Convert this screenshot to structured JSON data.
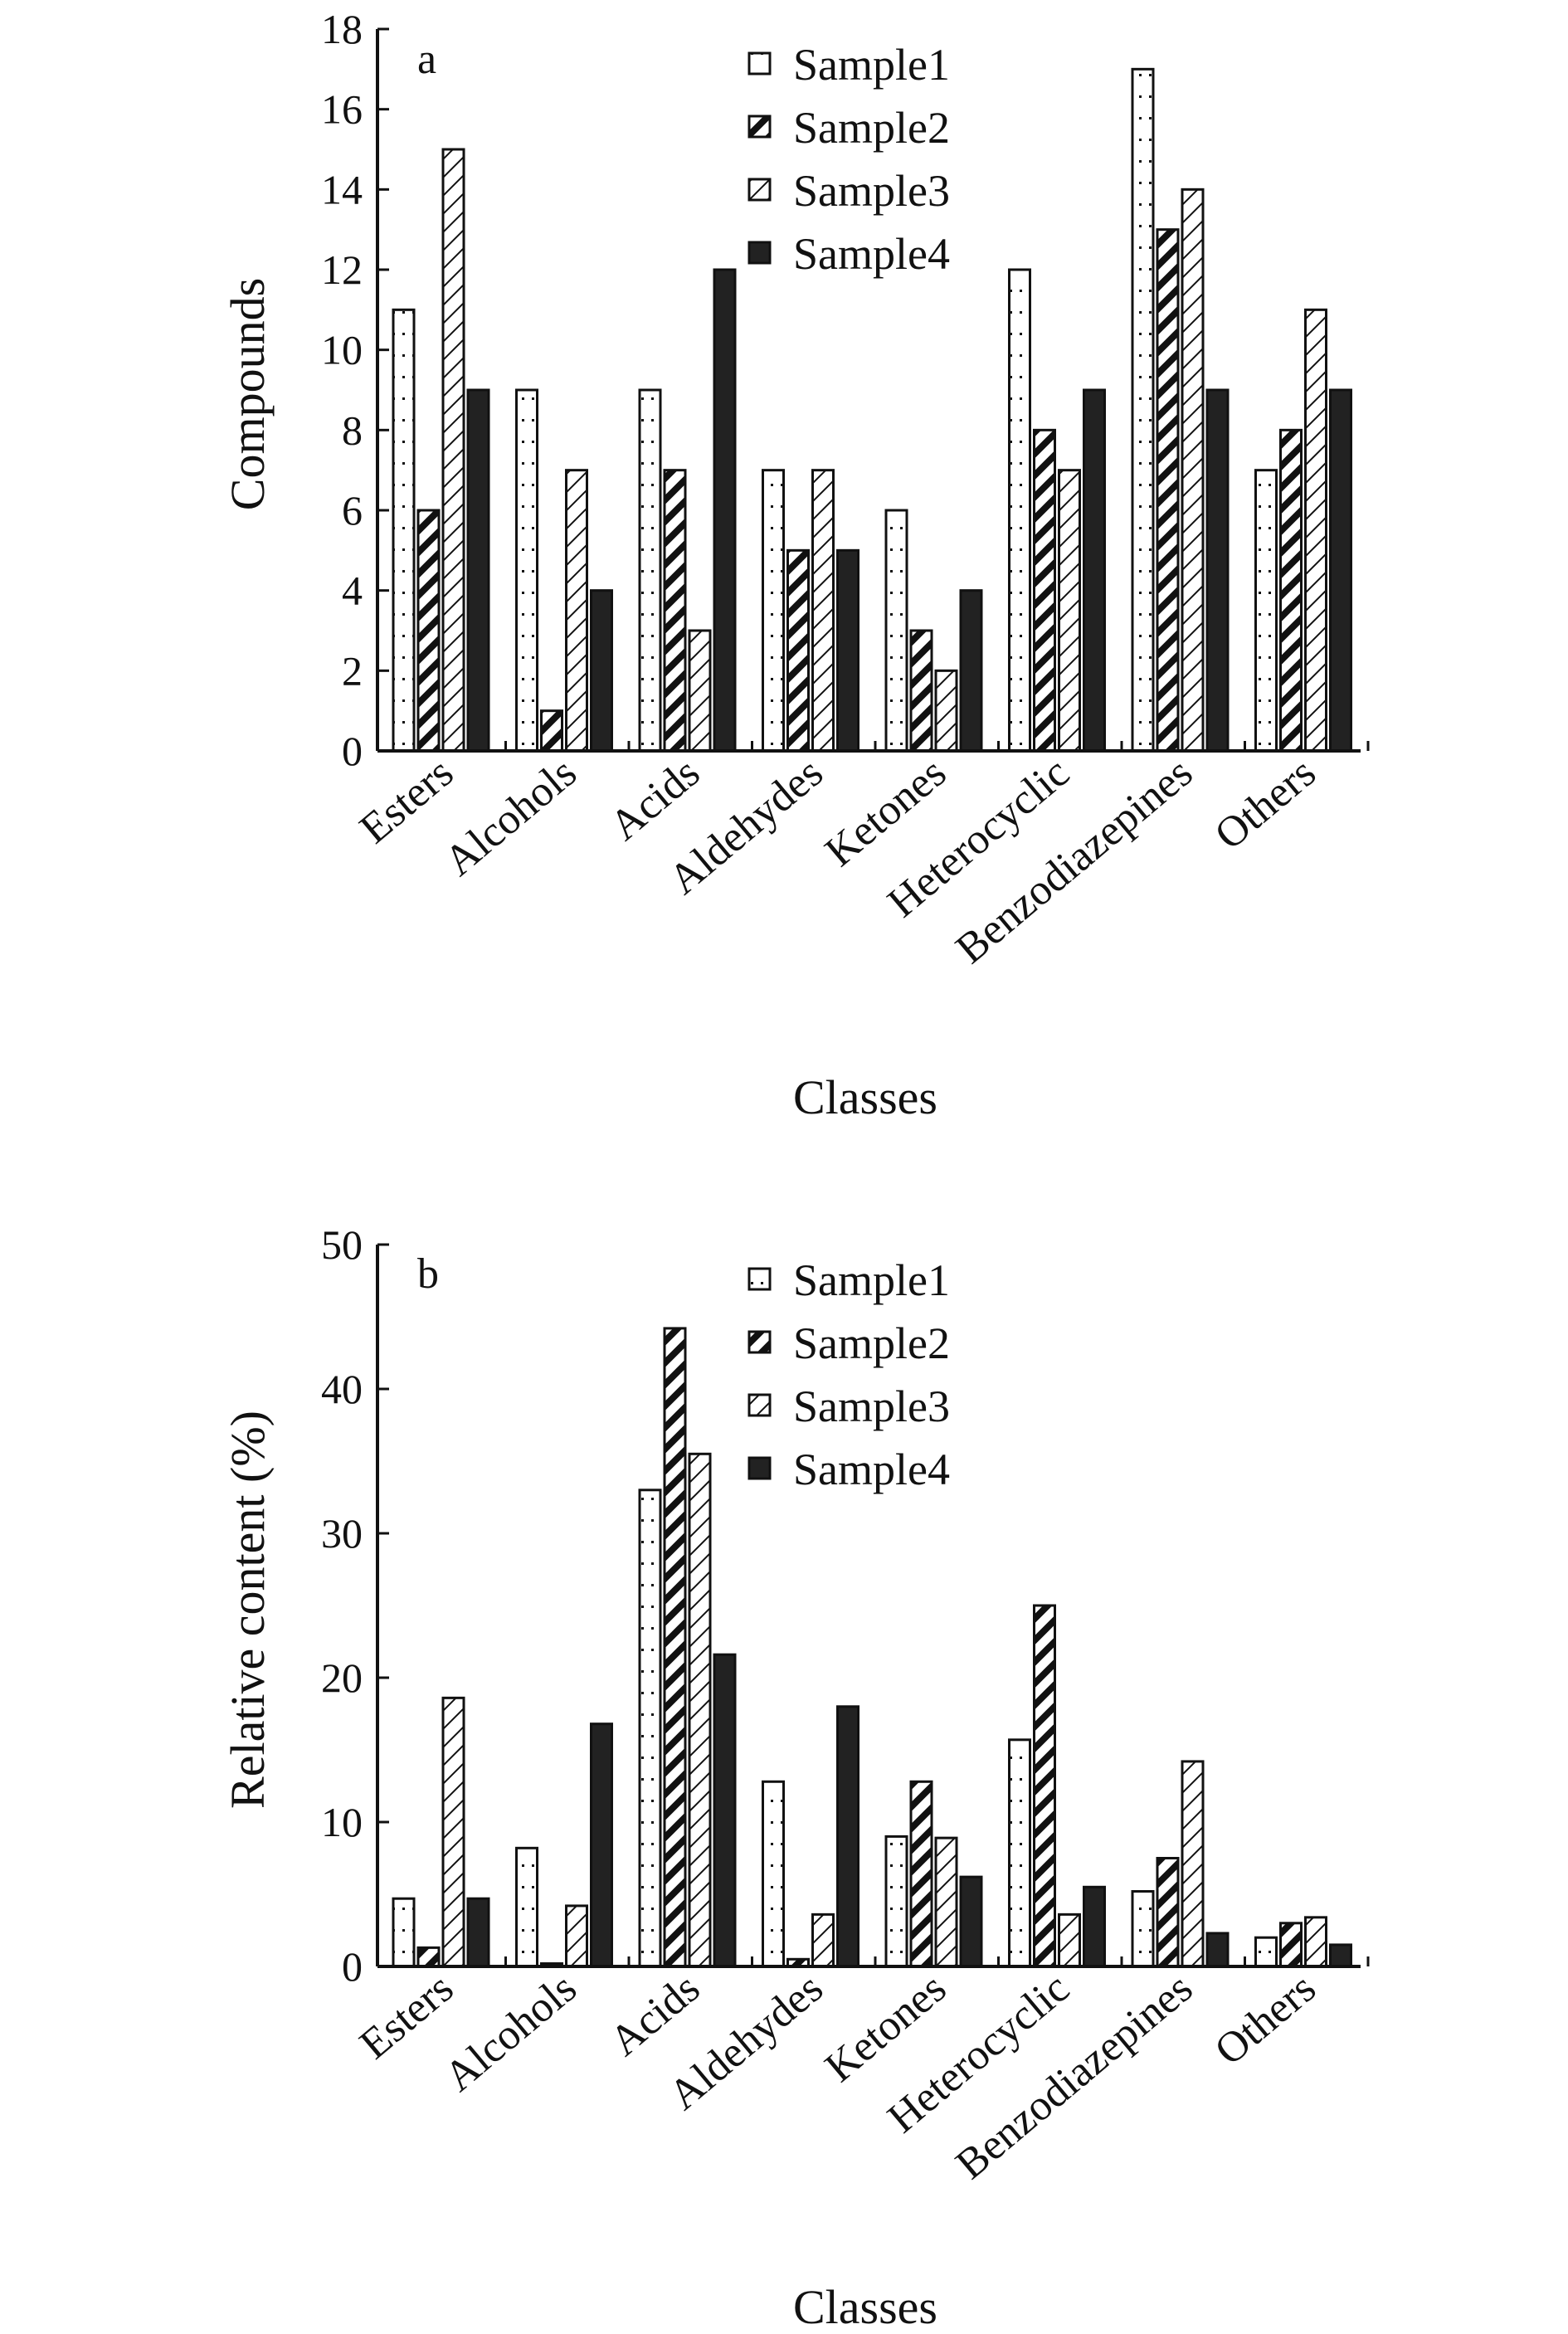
{
  "colors": {
    "ink": "#111111",
    "solid": "#222222",
    "paper": "#ffffff"
  },
  "chart_data": [
    {
      "type": "bar",
      "panel": "a",
      "categories": [
        "Esters",
        "Alcohols",
        "Acids",
        "Aldehydes",
        "Ketones",
        "Heterocyclic",
        "Benzodiazepines",
        "Others"
      ],
      "series": [
        {
          "name": "Sample1",
          "pattern": "dots",
          "values": [
            11,
            9,
            9,
            7,
            6,
            12,
            17,
            7
          ]
        },
        {
          "name": "Sample2",
          "pattern": "bold-diagonal",
          "values": [
            6,
            1,
            7,
            5,
            3,
            8,
            13,
            8
          ]
        },
        {
          "name": "Sample3",
          "pattern": "fine-diagonal",
          "values": [
            15,
            7,
            3,
            7,
            2,
            7,
            14,
            11
          ]
        },
        {
          "name": "Sample4",
          "pattern": "solid",
          "values": [
            9,
            4,
            12,
            5,
            4,
            9,
            9,
            9
          ]
        }
      ],
      "xlabel": "Classes",
      "ylabel": "Compounds",
      "ylim": [
        0,
        18
      ],
      "yticks": [
        "0",
        "2",
        "4",
        "6",
        "8",
        "10",
        "12",
        "14",
        "16",
        "18"
      ],
      "legend": "top-center",
      "grid": false
    },
    {
      "type": "bar",
      "panel": "b",
      "categories": [
        "Esters",
        "Alcohols",
        "Acids",
        "Aldehydes",
        "Ketones",
        "Heterocyclic",
        "Benzodiazepines",
        "Others"
      ],
      "series": [
        {
          "name": "Sample1",
          "pattern": "dots",
          "values": [
            4.7,
            8.2,
            33,
            12.8,
            9,
            15.7,
            5.2,
            2
          ]
        },
        {
          "name": "Sample2",
          "pattern": "bold-diagonal",
          "values": [
            1.3,
            0.2,
            44.2,
            0.5,
            12.8,
            25,
            7.5,
            3
          ]
        },
        {
          "name": "Sample3",
          "pattern": "fine-diagonal",
          "values": [
            18.6,
            4.2,
            35.5,
            3.6,
            8.9,
            3.6,
            14.2,
            3.4
          ]
        },
        {
          "name": "Sample4",
          "pattern": "solid",
          "values": [
            4.7,
            16.8,
            21.6,
            18,
            6.2,
            5.5,
            2.3,
            1.5
          ]
        }
      ],
      "xlabel": "Classes",
      "ylabel": "Relative content (%)",
      "ylim": [
        0,
        50
      ],
      "yticks": [
        "0",
        "10",
        "20",
        "30",
        "40",
        "50"
      ],
      "legend": "top-center",
      "grid": false
    }
  ]
}
